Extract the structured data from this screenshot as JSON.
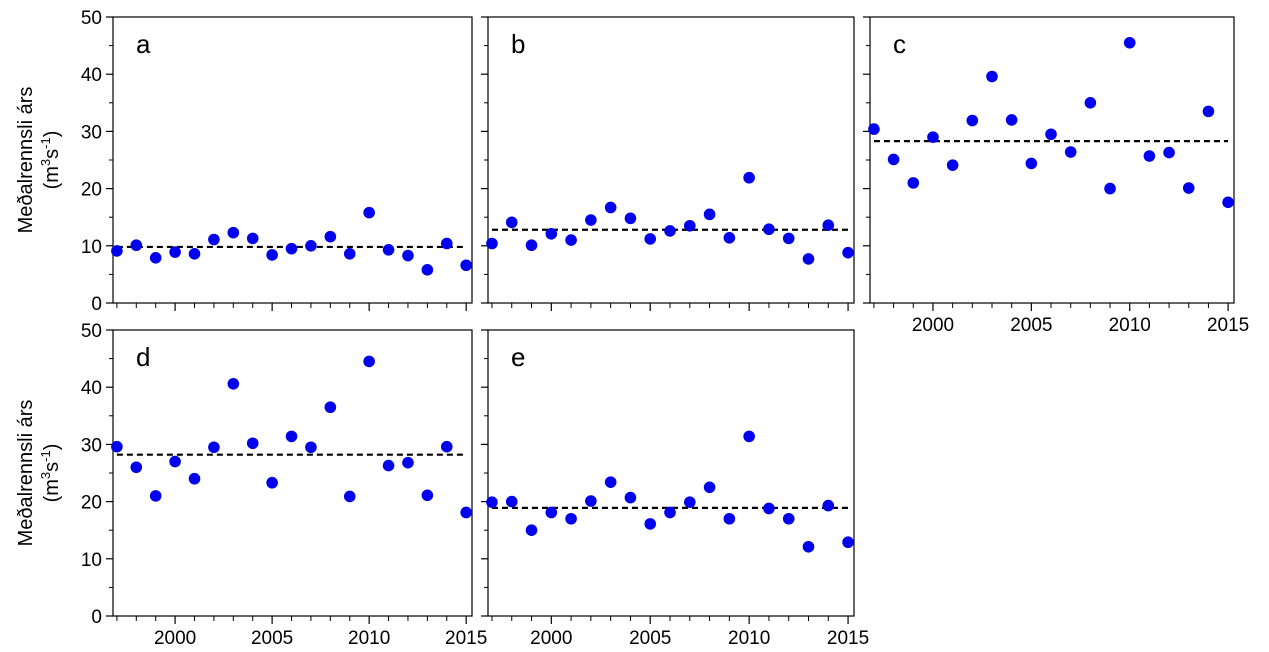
{
  "figure": {
    "ylabel_line1": "Meðalrennsli árs",
    "ylabel_unit_prefix": "(m",
    "ylabel_unit_exp1": "3",
    "ylabel_unit_mid": "s",
    "ylabel_unit_exp2": "-1",
    "ylabel_unit_suffix": ")"
  },
  "chart_data": [
    {
      "type": "scatter",
      "panel_label": "a",
      "x": [
        1997,
        1998,
        1999,
        2000,
        2001,
        2002,
        2003,
        2004,
        2005,
        2006,
        2007,
        2008,
        2009,
        2010,
        2011,
        2012,
        2013,
        2014,
        2015
      ],
      "y": [
        9.1,
        10.1,
        7.9,
        8.9,
        8.6,
        11.1,
        12.3,
        11.3,
        8.4,
        9.5,
        10.0,
        11.6,
        8.6,
        15.8,
        9.3,
        8.3,
        5.8,
        10.4,
        6.6
      ],
      "mean_line": 9.8,
      "xlim": [
        1996.8,
        2015.3
      ],
      "ylim": [
        0,
        50
      ],
      "xticks": [
        2000,
        2005,
        2010,
        2015
      ],
      "yticks": [
        0,
        10,
        20,
        30,
        40,
        50
      ],
      "show_xtick_labels": false,
      "show_ytick_labels": true,
      "marker_color": "#0000ee",
      "mean_line_color": "#000000",
      "grid": false
    },
    {
      "type": "scatter",
      "panel_label": "b",
      "x": [
        1997,
        1998,
        1999,
        2000,
        2001,
        2002,
        2003,
        2004,
        2005,
        2006,
        2007,
        2008,
        2009,
        2010,
        2011,
        2012,
        2013,
        2014,
        2015
      ],
      "y": [
        10.4,
        14.1,
        10.1,
        12.1,
        11.0,
        14.5,
        16.7,
        14.8,
        11.2,
        12.6,
        13.5,
        15.5,
        11.4,
        21.9,
        12.9,
        11.3,
        7.7,
        13.6,
        8.8
      ],
      "mean_line": 12.8,
      "xlim": [
        1996.8,
        2015.3
      ],
      "ylim": [
        0,
        50
      ],
      "xticks": [
        2000,
        2005,
        2010,
        2015
      ],
      "yticks": [
        0,
        10,
        20,
        30,
        40,
        50
      ],
      "show_xtick_labels": false,
      "show_ytick_labels": false,
      "marker_color": "#0000ee",
      "mean_line_color": "#000000",
      "grid": false
    },
    {
      "type": "scatter",
      "panel_label": "c",
      "x": [
        1997,
        1998,
        1999,
        2000,
        2001,
        2002,
        2003,
        2004,
        2005,
        2006,
        2007,
        2008,
        2009,
        2010,
        2011,
        2012,
        2013,
        2014,
        2015
      ],
      "y": [
        30.4,
        25.1,
        21.0,
        29.0,
        24.1,
        31.9,
        39.6,
        32.0,
        24.4,
        29.5,
        26.4,
        35.0,
        20.0,
        45.5,
        25.7,
        26.3,
        20.1,
        33.5,
        17.6
      ],
      "mean_line": 28.3,
      "xlim": [
        1996.8,
        2015.3
      ],
      "ylim": [
        0,
        50
      ],
      "xticks": [
        2000,
        2005,
        2010,
        2015
      ],
      "yticks": [
        0,
        10,
        20,
        30,
        40,
        50
      ],
      "show_xtick_labels": true,
      "show_ytick_labels": false,
      "marker_color": "#0000ee",
      "mean_line_color": "#000000",
      "grid": false
    },
    {
      "type": "scatter",
      "panel_label": "d",
      "x": [
        1997,
        1998,
        1999,
        2000,
        2001,
        2002,
        2003,
        2004,
        2005,
        2006,
        2007,
        2008,
        2009,
        2010,
        2011,
        2012,
        2013,
        2014,
        2015
      ],
      "y": [
        29.6,
        26.0,
        21.0,
        27.0,
        24.0,
        29.5,
        40.6,
        30.2,
        23.3,
        31.4,
        29.5,
        36.5,
        20.9,
        44.5,
        26.3,
        26.8,
        21.1,
        29.6,
        18.1
      ],
      "mean_line": 28.2,
      "xlim": [
        1996.8,
        2015.3
      ],
      "ylim": [
        0,
        50
      ],
      "xticks": [
        2000,
        2005,
        2010,
        2015
      ],
      "yticks": [
        0,
        10,
        20,
        30,
        40,
        50
      ],
      "show_xtick_labels": true,
      "show_ytick_labels": true,
      "marker_color": "#0000ee",
      "mean_line_color": "#000000",
      "grid": false
    },
    {
      "type": "scatter",
      "panel_label": "e",
      "x": [
        1997,
        1998,
        1999,
        2000,
        2001,
        2002,
        2003,
        2004,
        2005,
        2006,
        2007,
        2008,
        2009,
        2010,
        2011,
        2012,
        2013,
        2014,
        2015
      ],
      "y": [
        19.9,
        20.0,
        15.0,
        18.1,
        17.0,
        20.1,
        23.4,
        20.7,
        16.1,
        18.1,
        19.9,
        22.5,
        17.0,
        31.4,
        18.8,
        17.0,
        12.1,
        19.3,
        12.9
      ],
      "mean_line": 18.9,
      "xlim": [
        1996.8,
        2015.3
      ],
      "ylim": [
        0,
        50
      ],
      "xticks": [
        2000,
        2005,
        2010,
        2015
      ],
      "yticks": [
        0,
        10,
        20,
        30,
        40,
        50
      ],
      "show_xtick_labels": true,
      "show_ytick_labels": false,
      "marker_color": "#0000ee",
      "mean_line_color": "#000000",
      "grid": false
    }
  ]
}
